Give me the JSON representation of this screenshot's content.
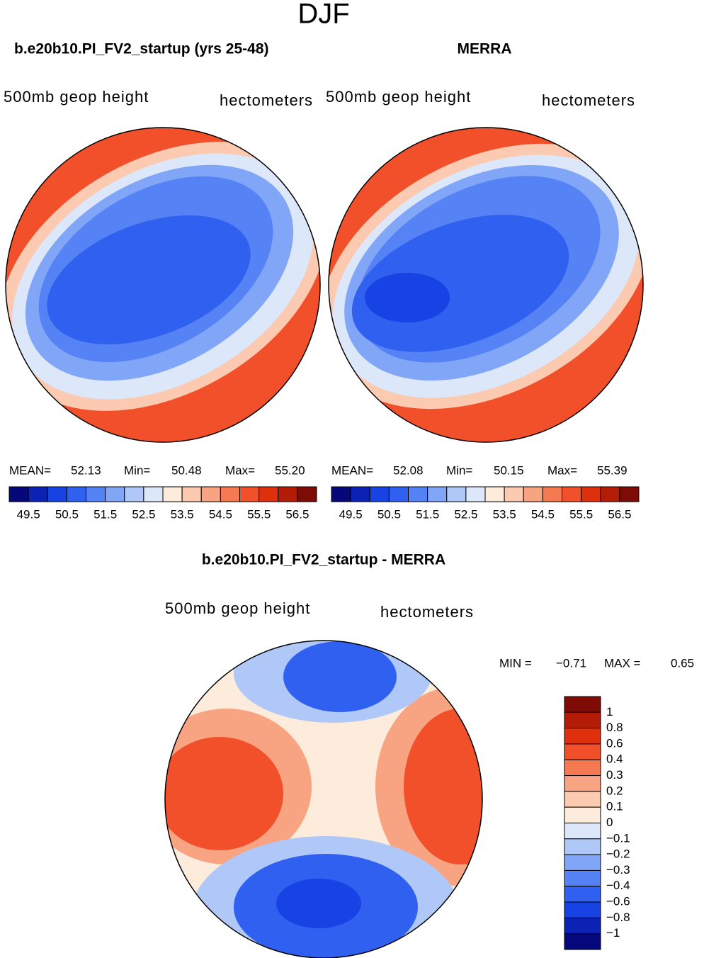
{
  "title": "DJF",
  "panels": [
    {
      "title": "b.e20b10.PI_FV2_startup (yrs 25-48)",
      "field": "500mb geop height",
      "units": "hectometers",
      "stats": [
        {
          "label": "MEAN=",
          "value": "52.13"
        },
        {
          "label": "Min=",
          "value": "50.48"
        },
        {
          "label": "Max=",
          "value": "55.20"
        }
      ],
      "colorbar": {
        "labels": [
          "49.5",
          "50.5",
          "51.5",
          "52.5",
          "53.5",
          "54.5",
          "55.5",
          "56.5"
        ],
        "colors": [
          "#07077c",
          "#0b22b4",
          "#1743e4",
          "#2f60f0",
          "#5582f5",
          "#82a6f7",
          "#b0c8f8",
          "#dce8fa",
          "#fdebdc",
          "#fbcab1",
          "#f8a483",
          "#f57a52",
          "#f2502a",
          "#df300e",
          "#b51c08",
          "#7e0b06"
        ]
      }
    },
    {
      "title": "MERRA",
      "field": "500mb geop height",
      "units": "hectometers",
      "stats": [
        {
          "label": "MEAN=",
          "value": "52.08"
        },
        {
          "label": "Min=",
          "value": "50.15"
        },
        {
          "label": "Max=",
          "value": "55.39"
        }
      ],
      "colorbar": {
        "labels": [
          "49.5",
          "50.5",
          "51.5",
          "52.5",
          "53.5",
          "54.5",
          "55.5",
          "56.5"
        ],
        "colors": [
          "#07077c",
          "#0b22b4",
          "#1743e4",
          "#2f60f0",
          "#5582f5",
          "#82a6f7",
          "#b0c8f8",
          "#dce8fa",
          "#fdebdc",
          "#fbcab1",
          "#f8a483",
          "#f57a52",
          "#f2502a",
          "#df300e",
          "#b51c08",
          "#7e0b06"
        ]
      }
    }
  ],
  "difference": {
    "title": "b.e20b10.PI_FV2_startup - MERRA",
    "field": "500mb geop height",
    "units": "hectometers",
    "stats": [
      {
        "label": "MIN =",
        "value": "−0.71"
      },
      {
        "label": "MAX =",
        "value": "0.65"
      }
    ],
    "colorbar": {
      "labels": [
        "1",
        "0.8",
        "0.6",
        "0.4",
        "0.3",
        "0.2",
        "0.1",
        "0",
        "−0.1",
        "−0.2",
        "−0.3",
        "−0.4",
        "−0.6",
        "−0.8",
        "−1"
      ],
      "colors": [
        "#7e0b06",
        "#b51c08",
        "#df300e",
        "#f2502a",
        "#f57a52",
        "#f8a483",
        "#fbcab1",
        "#fdebdc",
        "#dce8fa",
        "#b0c8f8",
        "#82a6f7",
        "#5582f5",
        "#2f60f0",
        "#1743e4",
        "#0b22b4",
        "#07077c"
      ]
    }
  }
}
